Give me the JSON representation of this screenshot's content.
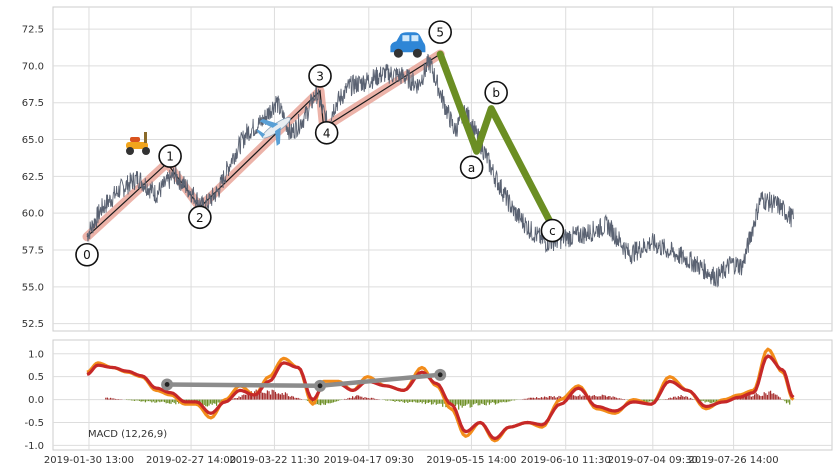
{
  "chart_data": [
    {
      "type": "line",
      "panel": "price",
      "ylim": [
        52,
        74
      ],
      "yticks": [
        "52.5",
        "55.0",
        "57.5",
        "60.0",
        "62.5",
        "65.0",
        "67.5",
        "70.0",
        "72.5"
      ],
      "x_range": [
        "2019-01-30",
        "2019-08-13"
      ],
      "grid": true,
      "series": [
        {
          "role": "price",
          "color": "#5a6272",
          "dates": [
            "2019-01-30",
            "2019-02-03",
            "2019-02-08",
            "2019-02-13",
            "2019-02-18",
            "2019-02-23",
            "2019-02-27",
            "2019-03-03",
            "2019-03-07",
            "2019-03-11",
            "2019-03-15",
            "2019-03-19",
            "2019-03-23",
            "2019-03-27",
            "2019-03-31",
            "2019-04-03",
            "2019-04-06",
            "2019-04-08",
            "2019-04-12",
            "2019-04-17",
            "2019-04-22",
            "2019-04-27",
            "2019-05-01",
            "2019-05-04",
            "2019-05-08",
            "2019-05-11",
            "2019-05-14",
            "2019-05-18",
            "2019-05-22",
            "2019-05-27",
            "2019-06-01",
            "2019-06-05",
            "2019-06-10",
            "2019-06-16",
            "2019-06-22",
            "2019-06-28",
            "2019-07-04",
            "2019-07-10",
            "2019-07-16",
            "2019-07-22",
            "2019-07-26",
            "2019-07-29",
            "2019-08-03",
            "2019-08-08",
            "2019-08-12"
          ],
          "values": [
            58.5,
            60.3,
            61.6,
            62.4,
            61.3,
            62.6,
            61.6,
            60.4,
            61.5,
            63.8,
            65.5,
            66.2,
            67.6,
            65.4,
            66.6,
            68.2,
            66.1,
            67.3,
            68.6,
            69.0,
            69.5,
            69.3,
            68.7,
            70.3,
            67.5,
            65.6,
            66.9,
            64.8,
            62.5,
            60.2,
            58.8,
            58.0,
            58.3,
            58.6,
            59.2,
            57.2,
            58.0,
            57.3,
            56.6,
            55.6,
            56.6,
            56.4,
            61.0,
            60.5,
            59.6
          ]
        }
      ],
      "waves": {
        "impulse": {
          "color": "#e69a8c",
          "points": [
            {
              "label": "0",
              "date": "2019-01-30",
              "value": 58.4
            },
            {
              "label": "1",
              "date": "2019-02-21",
              "value": 63.4
            },
            {
              "label": "2",
              "date": "2019-03-02",
              "value": 60.4
            },
            {
              "label": "3",
              "date": "2019-04-04",
              "value": 68.3
            },
            {
              "label": "4",
              "date": "2019-04-05",
              "value": 65.8
            },
            {
              "label": "5",
              "date": "2019-05-07",
              "value": 70.8
            }
          ]
        },
        "corrective": {
          "color": "#6b8e23",
          "points": [
            {
              "label": "5",
              "date": "2019-05-07",
              "value": 70.8
            },
            {
              "label": "a",
              "date": "2019-05-17",
              "value": 64.2
            },
            {
              "label": "b",
              "date": "2019-05-21",
              "value": 67.1
            },
            {
              "label": "c",
              "date": "2019-06-06",
              "value": 59.5
            }
          ]
        }
      },
      "icons": [
        {
          "name": "scooter-icon",
          "date": "2019-02-13",
          "value": 64.7
        },
        {
          "name": "airplane-icon",
          "date": "2019-03-23",
          "value": 65.8
        },
        {
          "name": "car-icon",
          "date": "2019-04-28",
          "value": 71.2
        }
      ]
    },
    {
      "type": "line",
      "panel": "macd",
      "ylim": [
        -1.1,
        1.3
      ],
      "yticks": [
        "-1.0",
        "-0.5",
        "0.0",
        "0.5",
        "1.0"
      ],
      "xticks": [
        "2019-01-30 13:00",
        "2019-02-27 14:00",
        "2019-03-22 11:30",
        "2019-04-17 09:30",
        "2019-05-15 14:00",
        "2019-06-10 11:30",
        "2019-07-04 09:30",
        "2019-07-26 14:00"
      ],
      "legend_text": "MACD (12,26,9)",
      "grid": true,
      "series": [
        {
          "role": "macd",
          "color": "#f28c1a",
          "dates": [
            "2019-01-30",
            "2019-02-02",
            "2019-02-06",
            "2019-02-10",
            "2019-02-14",
            "2019-02-18",
            "2019-02-22",
            "2019-02-26",
            "2019-03-01",
            "2019-03-05",
            "2019-03-09",
            "2019-03-13",
            "2019-03-17",
            "2019-03-21",
            "2019-03-25",
            "2019-03-29",
            "2019-04-02",
            "2019-04-05",
            "2019-04-09",
            "2019-04-13",
            "2019-04-17",
            "2019-04-22",
            "2019-04-27",
            "2019-05-02",
            "2019-05-06",
            "2019-05-10",
            "2019-05-14",
            "2019-05-18",
            "2019-05-22",
            "2019-05-26",
            "2019-05-31",
            "2019-06-04",
            "2019-06-09",
            "2019-06-14",
            "2019-06-19",
            "2019-06-24",
            "2019-06-29",
            "2019-07-04",
            "2019-07-09",
            "2019-07-14",
            "2019-07-19",
            "2019-07-24",
            "2019-07-28",
            "2019-08-01",
            "2019-08-05",
            "2019-08-09",
            "2019-08-12"
          ],
          "values": [
            0.6,
            0.8,
            0.7,
            0.6,
            0.5,
            0.2,
            0.1,
            -0.1,
            -0.1,
            -0.4,
            0.0,
            0.3,
            0.1,
            0.5,
            0.9,
            0.7,
            -0.1,
            0.4,
            0.4,
            0.2,
            0.5,
            0.3,
            0.2,
            0.7,
            0.3,
            -0.2,
            -0.8,
            -0.5,
            -0.9,
            -0.6,
            -0.5,
            -0.6,
            0.0,
            0.3,
            -0.2,
            -0.3,
            0.0,
            -0.1,
            0.5,
            0.2,
            -0.2,
            0.0,
            0.1,
            0.2,
            1.1,
            0.6,
            0.0
          ]
        },
        {
          "role": "signal",
          "color": "#c62828",
          "dates": [
            "2019-01-30",
            "2019-02-02",
            "2019-02-06",
            "2019-02-10",
            "2019-02-14",
            "2019-02-18",
            "2019-02-22",
            "2019-02-26",
            "2019-03-01",
            "2019-03-05",
            "2019-03-09",
            "2019-03-13",
            "2019-03-17",
            "2019-03-21",
            "2019-03-25",
            "2019-03-29",
            "2019-04-02",
            "2019-04-05",
            "2019-04-09",
            "2019-04-13",
            "2019-04-17",
            "2019-04-22",
            "2019-04-27",
            "2019-05-02",
            "2019-05-06",
            "2019-05-10",
            "2019-05-14",
            "2019-05-18",
            "2019-05-22",
            "2019-05-26",
            "2019-05-31",
            "2019-06-04",
            "2019-06-09",
            "2019-06-14",
            "2019-06-19",
            "2019-06-24",
            "2019-06-29",
            "2019-07-04",
            "2019-07-09",
            "2019-07-14",
            "2019-07-19",
            "2019-07-24",
            "2019-07-28",
            "2019-08-01",
            "2019-08-05",
            "2019-08-09",
            "2019-08-12"
          ],
          "values": [
            0.55,
            0.75,
            0.7,
            0.62,
            0.52,
            0.25,
            0.15,
            -0.05,
            -0.05,
            -0.3,
            -0.05,
            0.2,
            0.1,
            0.4,
            0.8,
            0.7,
            0.0,
            0.3,
            0.35,
            0.2,
            0.4,
            0.3,
            0.2,
            0.6,
            0.35,
            -0.1,
            -0.7,
            -0.5,
            -0.85,
            -0.6,
            -0.5,
            -0.55,
            -0.1,
            0.25,
            -0.15,
            -0.25,
            -0.05,
            -0.1,
            0.4,
            0.2,
            -0.15,
            -0.05,
            0.05,
            0.15,
            0.95,
            0.65,
            0.05
          ]
        }
      ],
      "histogram": {
        "positive_color": "#a52a2a",
        "negative_color": "#6b8e23",
        "dates": [
          "2019-02-04",
          "2019-02-14",
          "2019-02-24",
          "2019-03-06",
          "2019-03-16",
          "2019-03-24",
          "2019-04-04",
          "2019-04-14",
          "2019-04-24",
          "2019-05-04",
          "2019-05-12",
          "2019-05-22",
          "2019-06-01",
          "2019-06-12",
          "2019-06-22",
          "2019-07-02",
          "2019-07-12",
          "2019-07-20",
          "2019-07-30",
          "2019-08-06",
          "2019-08-11"
        ],
        "values": [
          0.05,
          -0.05,
          -0.1,
          -0.15,
          0.2,
          0.2,
          -0.15,
          0.1,
          -0.05,
          -0.1,
          -0.2,
          -0.1,
          0.05,
          0.1,
          0.1,
          -0.1,
          0.1,
          -0.1,
          0.1,
          0.2,
          -0.15
        ]
      },
      "wave_overlay": {
        "color": "#8c8c8c",
        "points": [
          {
            "date": "2019-02-21",
            "value": 0.33
          },
          {
            "date": "2019-04-04",
            "value": 0.3
          },
          {
            "date": "2019-05-07",
            "value": 0.54
          }
        ]
      }
    }
  ]
}
